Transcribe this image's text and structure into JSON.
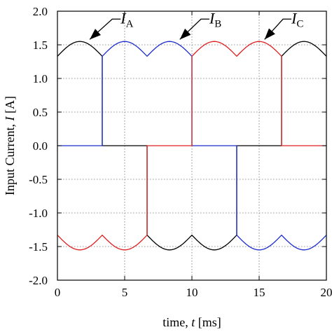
{
  "chart_data": {
    "type": "line",
    "xlabel": "time, t [ms]",
    "ylabel": "Input Current, I [A]",
    "xlabel_parts": {
      "pre": "time, ",
      "var": "t",
      "post": " [ms]"
    },
    "ylabel_parts": {
      "pre": "Input Current, ",
      "var": "I",
      "post": " [A]"
    },
    "xlim": [
      0,
      20
    ],
    "ylim": [
      -2.0,
      2.0
    ],
    "xticks": [
      0,
      5,
      10,
      15,
      20
    ],
    "yticks": [
      -2.0,
      -1.5,
      -1.0,
      -0.5,
      0.0,
      0.5,
      1.0,
      1.5,
      2.0
    ],
    "xtick_labels": [
      "0",
      "5",
      "10",
      "15",
      "20"
    ],
    "ytick_labels": [
      "-2.0",
      "-1.5",
      "-1.0",
      "-0.5",
      "0.0",
      "0.5",
      "1.0",
      "1.5",
      "2.0"
    ],
    "grid": "dotted",
    "waveform": {
      "period_ms": 20,
      "peak": 1.55,
      "valley": 1.33,
      "ripple_period_ms": 3.333,
      "zero_level": 0.0
    },
    "series": [
      {
        "name": "IA",
        "label_main": "I",
        "label_sub": "A",
        "color": "#000000",
        "segments": [
          [
            0,
            3.333,
            1
          ],
          [
            3.333,
            6.667,
            0
          ],
          [
            6.667,
            13.333,
            -1
          ],
          [
            13.333,
            16.667,
            0
          ],
          [
            16.667,
            20,
            1
          ]
        ]
      },
      {
        "name": "IB",
        "label_main": "I",
        "label_sub": "B",
        "color": "#1c2ecf",
        "segments": [
          [
            0,
            3.333,
            0
          ],
          [
            3.333,
            10,
            1
          ],
          [
            10,
            13.333,
            0
          ],
          [
            13.333,
            20,
            -1
          ]
        ]
      },
      {
        "name": "IC",
        "label_main": "I",
        "label_sub": "C",
        "color": "#e02020",
        "segments": [
          [
            0,
            6.667,
            -1
          ],
          [
            6.667,
            10,
            0
          ],
          [
            10,
            16.667,
            1
          ],
          [
            16.667,
            20,
            0
          ]
        ]
      }
    ],
    "annotations": [
      {
        "series": "IA",
        "text_x": 4.7,
        "text_y": 1.82,
        "arrow_x": 2.4,
        "arrow_y": 1.58
      },
      {
        "series": "IB",
        "text_x": 11.3,
        "text_y": 1.82,
        "arrow_x": 9.1,
        "arrow_y": 1.58
      },
      {
        "series": "IC",
        "text_x": 17.4,
        "text_y": 1.82,
        "arrow_x": 15.4,
        "arrow_y": 1.58
      }
    ]
  }
}
